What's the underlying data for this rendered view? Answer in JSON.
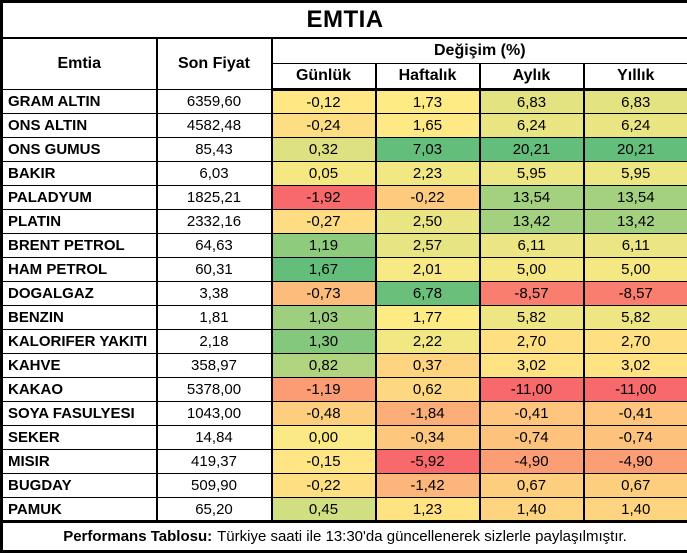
{
  "chart_data": {
    "type": "table",
    "title": "EMTIA",
    "col_emtia": "Emtia",
    "col_price": "Son Fiyat",
    "col_group": "Değişim (%)",
    "periods": [
      "Günlük",
      "Haftalık",
      "Aylık",
      "Yıllık"
    ],
    "rows": [
      {
        "name": "GRAM ALTIN",
        "price": "6359,60",
        "changes": [
          "-0,12",
          "1,73",
          "6,83",
          "6,83"
        ],
        "colors": [
          "#FFE783",
          "#FFEB84",
          "#E4E382",
          "#E4E382"
        ]
      },
      {
        "name": "ONS ALTIN",
        "price": "4582,48",
        "changes": [
          "-0,24",
          "1,65",
          "6,24",
          "6,24"
        ],
        "colors": [
          "#FEDE82",
          "#FFE984",
          "#E9E583",
          "#E9E583"
        ]
      },
      {
        "name": "ONS GUMUS",
        "price": "85,43",
        "changes": [
          "0,32",
          "7,03",
          "20,21",
          "20,21"
        ],
        "colors": [
          "#DDE182",
          "#63BE7B",
          "#63BE7B",
          "#63BE7B"
        ]
      },
      {
        "name": "BAKIR",
        "price": "6,03",
        "changes": [
          "0,05",
          "2,23",
          "5,95",
          "5,95"
        ],
        "colors": [
          "#F5E883",
          "#F1E783",
          "#ECE683",
          "#ECE683"
        ]
      },
      {
        "name": "PALADYUM",
        "price": "1825,21",
        "changes": [
          "-1,92",
          "-0,22",
          "13,54",
          "13,54"
        ],
        "colors": [
          "#F8696B",
          "#FDCA7E",
          "#A3D17F",
          "#A3D17F"
        ]
      },
      {
        "name": "PLATIN",
        "price": "2332,16",
        "changes": [
          "-0,27",
          "2,50",
          "13,42",
          "13,42"
        ],
        "colors": [
          "#FEDC81",
          "#E9E583",
          "#A4D17F",
          "#A4D17F"
        ]
      },
      {
        "name": "BRENT PETROL",
        "price": "64,63",
        "changes": [
          "1,19",
          "2,57",
          "6,11",
          "6,11"
        ],
        "colors": [
          "#8ECB7D",
          "#E7E483",
          "#EBE583",
          "#EBE583"
        ]
      },
      {
        "name": "HAM PETROL",
        "price": "60,31",
        "changes": [
          "1,67",
          "2,01",
          "5,00",
          "5,00"
        ],
        "colors": [
          "#63BE7B",
          "#F7E984",
          "#F5E883",
          "#F5E883"
        ]
      },
      {
        "name": "DOGALGAZ",
        "price": "3,38",
        "changes": [
          "-0,73",
          "6,78",
          "-8,57",
          "-8,57"
        ],
        "colors": [
          "#FCBC7B",
          "#6AC07B",
          "#F97E6F",
          "#F97E6F"
        ]
      },
      {
        "name": "BENZIN",
        "price": "1,81",
        "changes": [
          "1,03",
          "1,77",
          "5,82",
          "5,82"
        ],
        "colors": [
          "#9DCF7E",
          "#FEEB84",
          "#EEE683",
          "#EEE683"
        ]
      },
      {
        "name": "KALORIFER YAKITI",
        "price": "2,18",
        "changes": [
          "1,30",
          "2,22",
          "2,70",
          "2,70"
        ],
        "colors": [
          "#84C87D",
          "#F1E783",
          "#FEE082",
          "#FEE082"
        ]
      },
      {
        "name": "KAHVE",
        "price": "358,97",
        "changes": [
          "0,82",
          "0,37",
          "3,02",
          "3,02"
        ],
        "colors": [
          "#B0D47F",
          "#FED480",
          "#FFE282",
          "#FFE282"
        ]
      },
      {
        "name": "KAKAO",
        "price": "5378,00",
        "changes": [
          "-1,19",
          "0,62",
          "-11,00",
          "-11,00"
        ],
        "colors": [
          "#FB9C75",
          "#FED880",
          "#F8696B",
          "#F8696B"
        ]
      },
      {
        "name": "SOYA FASULYESI",
        "price": "1043,00",
        "changes": [
          "-0,48",
          "-1,84",
          "-0,41",
          "-0,41"
        ],
        "colors": [
          "#FDCE7E",
          "#FCAE78",
          "#FDC57D",
          "#FDC57D"
        ]
      },
      {
        "name": "SEKER",
        "price": "14,84",
        "changes": [
          "0,00",
          "-0,34",
          "-0,74",
          "-0,74"
        ],
        "colors": [
          "#FAE984",
          "#FDC87D",
          "#FDC27C",
          "#FDC27C"
        ]
      },
      {
        "name": "MISIR",
        "price": "419,37",
        "changes": [
          "-0,15",
          "-5,92",
          "-4,90",
          "-4,90"
        ],
        "colors": [
          "#FFE583",
          "#F8696B",
          "#FB9E75",
          "#FB9E75"
        ]
      },
      {
        "name": "BUGDAY",
        "price": "509,90",
        "changes": [
          "-0,22",
          "-1,42",
          "0,67",
          "0,67"
        ],
        "colors": [
          "#FEE082",
          "#FCB57A",
          "#FDCE7E",
          "#FDCE7E"
        ]
      },
      {
        "name": "PAMUK",
        "price": "65,20",
        "changes": [
          "0,45",
          "1,23",
          "1,40",
          "1,40"
        ],
        "colors": [
          "#D1DE81",
          "#FFE282",
          "#FED480",
          "#FED480"
        ]
      }
    ],
    "color_scale": {
      "min_negative": "#F8696B",
      "mid_neutral": "#FFEB84",
      "max_positive": "#63BE7B",
      "scope": "per-column 3-color scale"
    },
    "layout": {
      "border_color": "#000000",
      "background": "#FFFFFF"
    },
    "footer": {
      "label": "Performans Tablosu:",
      "text": "Türkiye saati ile 13:30'da güncellenerek sizlerle paylaşılmıştır."
    }
  }
}
